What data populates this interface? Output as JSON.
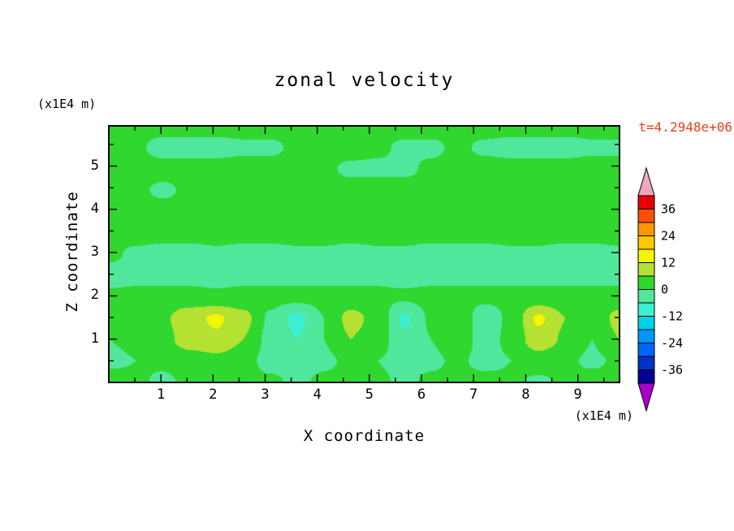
{
  "title": "zonal velocity",
  "timestamp": {
    "text": "t=4.2948e+06",
    "color": "#e8401a"
  },
  "axes": {
    "x_label": "X coordinate",
    "x_unit": "(x1E4 m)",
    "y_label": "Z coordinate",
    "y_unit": "(x1E4 m)",
    "x_ticks": [
      1,
      2,
      3,
      4,
      5,
      6,
      7,
      8,
      9
    ],
    "y_ticks": [
      1,
      2,
      3,
      4,
      5
    ],
    "x_range": [
      0,
      9.8
    ],
    "y_range": [
      0,
      5.93
    ]
  },
  "colorbar": {
    "labels": [
      36,
      24,
      12,
      0,
      -12,
      -24,
      -36
    ],
    "min": -42,
    "max": 42,
    "step": 6,
    "band_colors": [
      "#000096",
      "#0032c8",
      "#0064ff",
      "#0096ff",
      "#00d2e6",
      "#3cf0d2",
      "#50e69b",
      "#2fd72f",
      "#b4e132",
      "#f5f500",
      "#ffc800",
      "#ff9600",
      "#ff5000",
      "#e60000"
    ],
    "over_color": "#f0a8be",
    "under_color": "#aa00c8"
  },
  "chart_data": {
    "type": "filled-contour",
    "title": "zonal velocity",
    "xlabel": "X coordinate (x1E4 m)",
    "ylabel": "Z coordinate (x1E4 m)",
    "x_range": [
      0,
      9.8
    ],
    "z_range": [
      0,
      5.93
    ],
    "contour_interval": 6,
    "value_range_shown": [
      -42,
      42
    ],
    "colorbar_ticks": [
      36,
      24,
      12,
      0,
      -12,
      -24,
      -36
    ],
    "grid_note": "zonal velocity values on a 20x13 grid, rows ordered top (z=5.93) to bottom (z=0)",
    "values": [
      [
        2,
        2,
        2,
        2,
        2,
        2,
        2,
        2,
        2,
        2,
        2,
        2,
        2,
        2,
        2,
        2,
        2,
        2,
        2,
        2
      ],
      [
        2,
        1,
        -2,
        -2,
        -2,
        -1,
        -1,
        1,
        2,
        2,
        1,
        -1,
        -1,
        1,
        -1,
        -2,
        -2,
        -2,
        -1,
        -1
      ],
      [
        2,
        2,
        2,
        2,
        2,
        2,
        2,
        2,
        1,
        -1,
        -1,
        -1,
        1,
        2,
        2,
        2,
        2,
        2,
        2,
        2
      ],
      [
        2,
        1,
        -1,
        1,
        2,
        2,
        2,
        2,
        2,
        2,
        2,
        2,
        2,
        2,
        2,
        2,
        2,
        2,
        2,
        2
      ],
      [
        2,
        2,
        2,
        2,
        2,
        2,
        2,
        2,
        2,
        2,
        2,
        2,
        2,
        2,
        2,
        2,
        2,
        2,
        2,
        2
      ],
      [
        2,
        2,
        2,
        2,
        2,
        2,
        2,
        2,
        2,
        2,
        2,
        2,
        2,
        2,
        2,
        2,
        2,
        2,
        2,
        2
      ],
      [
        1,
        -1,
        -2,
        -2,
        -1,
        -2,
        -2,
        -1,
        -1,
        -2,
        -1,
        -1,
        -2,
        -2,
        -2,
        -1,
        -1,
        -2,
        -2,
        -1
      ],
      [
        -2,
        -2,
        -2,
        -2,
        -2,
        -2,
        -2,
        -2,
        -2,
        -2,
        -1,
        -2,
        -2,
        -2,
        -2,
        -2,
        -2,
        -2,
        -2,
        -2
      ],
      [
        1,
        2,
        2,
        2,
        1,
        2,
        2,
        2,
        2,
        2,
        1,
        1,
        2,
        2,
        2,
        2,
        2,
        2,
        2,
        2
      ],
      [
        0,
        2,
        5,
        10,
        13,
        8,
        -1,
        -8,
        0,
        8,
        4,
        -7,
        1,
        6,
        -5,
        2,
        13,
        6,
        1,
        8
      ],
      [
        0,
        1,
        4,
        9,
        11,
        6,
        -2,
        -6,
        0,
        6,
        3,
        -5,
        0,
        4,
        -3,
        2,
        10,
        5,
        0,
        6
      ],
      [
        -1,
        0,
        1,
        3,
        4,
        2,
        -2,
        -3,
        -1,
        1,
        0,
        -2,
        -1,
        1,
        -2,
        0,
        3,
        1,
        -1,
        1
      ],
      [
        2,
        1,
        -1,
        1,
        2,
        2,
        1,
        -1,
        1,
        2,
        1,
        -1,
        1,
        2,
        2,
        1,
        -1,
        1,
        2,
        2
      ]
    ]
  }
}
